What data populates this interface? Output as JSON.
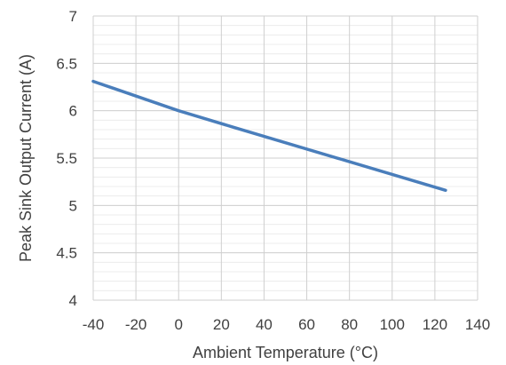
{
  "chart_data": {
    "type": "line",
    "title": "",
    "xlabel": "Ambient Temperature (°C)",
    "ylabel": "Peak Sink Output Current (A)",
    "xlim": [
      -40,
      140
    ],
    "ylim": [
      4,
      7
    ],
    "x_major_step": 20,
    "y_major_step": 0.5,
    "y_minor_step": 0.1,
    "grid": true,
    "legend": "none",
    "x_ticks": [
      "-40",
      "-20",
      "0",
      "20",
      "40",
      "60",
      "80",
      "100",
      "120",
      "140"
    ],
    "y_ticks": [
      "4",
      "4.5",
      "5",
      "5.5",
      "6",
      "6.5",
      "7"
    ],
    "series": [
      {
        "color": "#4a7ebb",
        "x": [
          -40,
          0,
          25,
          125
        ],
        "y": [
          6.31,
          6.0,
          5.83,
          5.16
        ]
      }
    ]
  }
}
